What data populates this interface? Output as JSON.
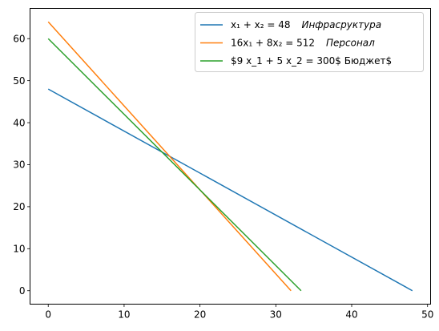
{
  "chart_data": {
    "type": "line",
    "xlim": [
      -2.4,
      50.4
    ],
    "ylim": [
      -3.2,
      67.2
    ],
    "xticks": [
      0,
      10,
      20,
      30,
      40,
      50
    ],
    "yticks": [
      0,
      10,
      20,
      30,
      40,
      50,
      60
    ],
    "grid": false,
    "legend_position": "top-right",
    "series": [
      {
        "name": "x_1 + x_2 = 48   Инфрасруктура",
        "color": "#1f77b4",
        "x": [
          0,
          48
        ],
        "y": [
          48,
          0
        ],
        "legend": {
          "math": "x₁ + x₂ = 48",
          "label": "Инфрасруктура"
        }
      },
      {
        "name": "16x_1 + 8x_2 = 512   Персонал",
        "color": "#ff7f0e",
        "x": [
          0,
          32
        ],
        "y": [
          64,
          0
        ],
        "legend": {
          "math": "16x₁ + 8x₂ = 512",
          "label": "Персонал"
        }
      },
      {
        "name": "$9 x_1 + 5 x_2 = 300$ Бюджет$",
        "color": "#2ca02c",
        "x": [
          0,
          33.33
        ],
        "y": [
          60,
          0
        ],
        "legend": {
          "math": "",
          "label": "$9 x_1 + 5 x_2 = 300$ Бюджет$"
        }
      }
    ]
  }
}
